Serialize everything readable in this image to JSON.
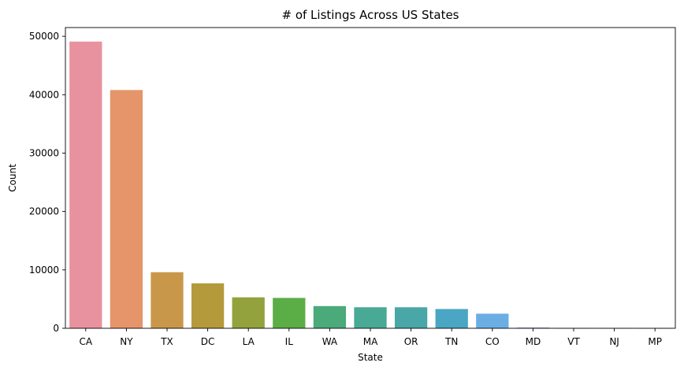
{
  "chart_data": {
    "type": "bar",
    "title": "# of Listings Across US States",
    "xlabel": "State",
    "ylabel": "Count",
    "categories": [
      "CA",
      "NY",
      "TX",
      "DC",
      "LA",
      "IL",
      "WA",
      "MA",
      "OR",
      "TN",
      "CO",
      "MD",
      "VT",
      "NJ",
      "MP"
    ],
    "values": [
      49100,
      40800,
      9600,
      7700,
      5300,
      5200,
      3800,
      3600,
      3600,
      3300,
      2500,
      120,
      40,
      20,
      10
    ],
    "colors": [
      "#e8929f",
      "#e6946a",
      "#c9974a",
      "#b59a3c",
      "#93a23c",
      "#5bad46",
      "#4aaa7a",
      "#48a995",
      "#49a7a8",
      "#4aa6c3",
      "#6aaee4",
      "#9c8de8",
      "#c584e8",
      "#e37fd7",
      "#e78bb3"
    ],
    "yticks": [
      0,
      10000,
      20000,
      30000,
      40000,
      50000
    ],
    "ylim": [
      0,
      51500
    ],
    "grid": false,
    "legend": "none"
  }
}
